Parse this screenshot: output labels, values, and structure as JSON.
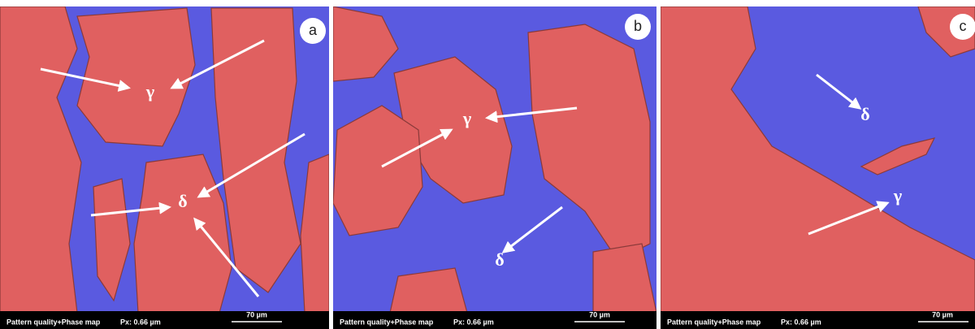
{
  "panels": [
    {
      "label": "a",
      "annotations": [
        "γ",
        "δ"
      ],
      "footer": "Pattern quality+Phase map",
      "pixel_size": "Px: 0.66 µm",
      "scale_bar": "70 µm"
    },
    {
      "label": "b",
      "annotations": [
        "γ",
        "δ"
      ],
      "footer": "Pattern quality+Phase map",
      "pixel_size": "Px: 0.66 µm",
      "scale_bar": "70 µm"
    },
    {
      "label": "c",
      "annotations": [
        "δ",
        "γ"
      ],
      "footer": "Pattern quality+Phase map",
      "pixel_size": "Px: 0.66 µm",
      "scale_bar": "70 µm"
    }
  ]
}
